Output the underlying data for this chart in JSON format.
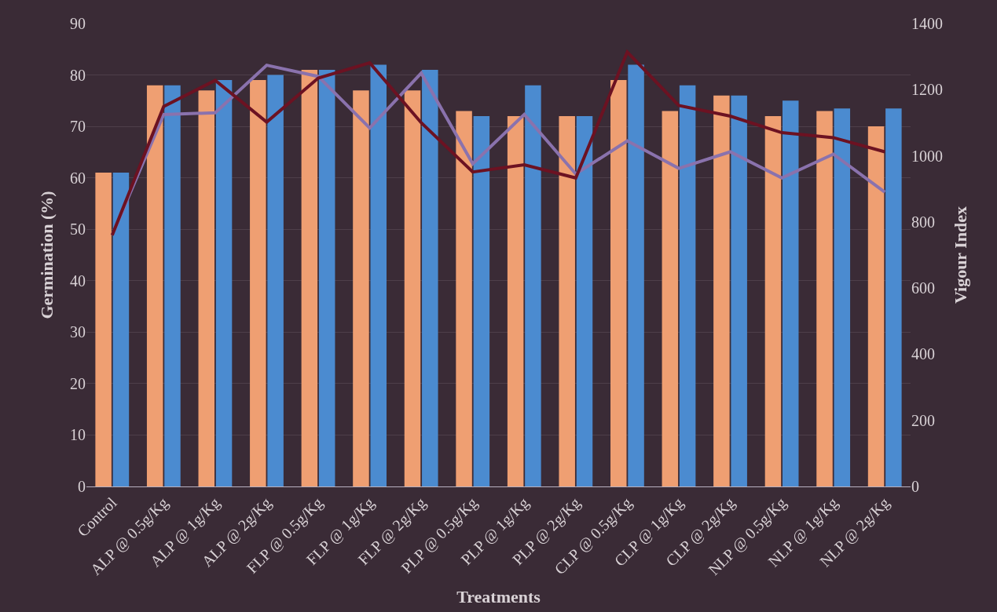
{
  "chart_data": {
    "type": "bar",
    "xlabel": "Treatments",
    "ylabel": "Germination (%)",
    "y2label": "Vigour Index",
    "categories": [
      "Control",
      "ALP @ 0.5g/Kg",
      "ALP @ 1g/Kg",
      "ALP @ 2g/Kg",
      "FLP @ 0.5g/Kg",
      "FLP @ 1g/Kg",
      "FLP @ 2g/Kg",
      "PLP @ 0.5g/Kg",
      "PLP @ 1g/Kg",
      "PLP @ 2g/Kg",
      "CLP @ 0.5g/Kg",
      "CLP @ 1g/Kg",
      "CLP @ 2g/Kg",
      "NLP @ 0.5g/Kg",
      "NLP @ 1g/Kg",
      "NLP @ 2g/Kg"
    ],
    "series": [
      {
        "color": "#ef9f72",
        "values": [
          61,
          78,
          77,
          79,
          81,
          77,
          77,
          73,
          72,
          72,
          79,
          73,
          76,
          72,
          73,
          70
        ]
      },
      {
        "color": "#4b8bd0",
        "values": [
          61,
          78,
          79,
          80,
          81,
          82,
          81,
          72,
          78,
          72,
          82,
          78,
          76,
          75,
          73.5,
          73.5
        ]
      },
      {
        "type": "line",
        "axis": "y2",
        "color": "#8a72ad",
        "values": [
          760,
          1125,
          1130,
          1274,
          1240,
          1084,
          1250,
          976,
          1125,
          945,
          1045,
          962,
          1012,
          933,
          1005,
          890
        ]
      },
      {
        "type": "line",
        "axis": "y2",
        "color": "#6c1222",
        "values": [
          760,
          1149,
          1228,
          1102,
          1235,
          1281,
          1100,
          951,
          973,
          933,
          1314,
          1152,
          1120,
          1070,
          1055,
          1012
        ]
      }
    ],
    "ylim": [
      0,
      90
    ],
    "yticks": [
      0,
      10,
      20,
      30,
      40,
      50,
      60,
      70,
      80,
      90
    ],
    "y2lim": [
      0,
      1400
    ],
    "y2ticks": [
      0,
      200,
      400,
      600,
      800,
      1000,
      1200,
      1400
    ],
    "grid": "y",
    "line_style": "solid",
    "marker": "none"
  }
}
